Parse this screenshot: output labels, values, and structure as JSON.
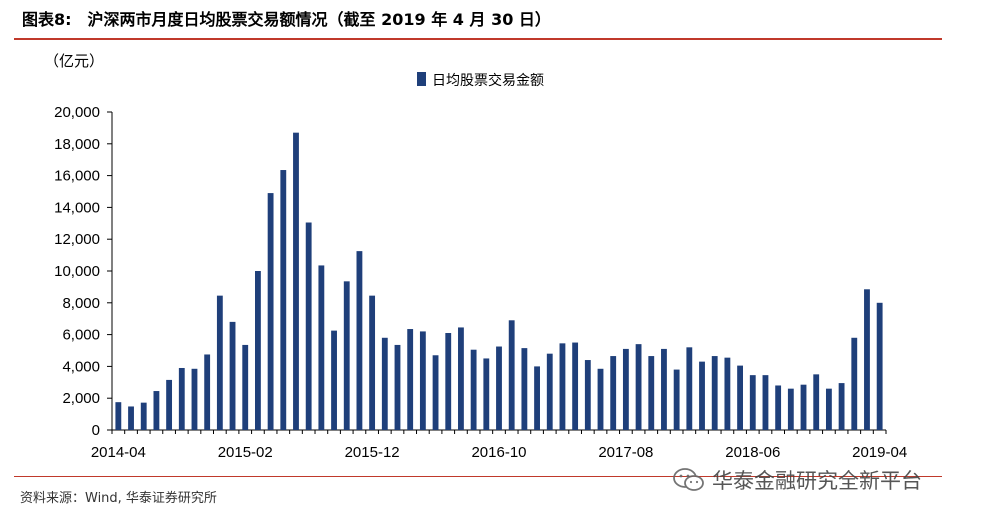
{
  "figure": {
    "label": "图表8:",
    "title": "沪深两市月度日均股票交易额情况（截至 2019 年 4 月 30 日）",
    "unit": "（亿元）",
    "source": "资料来源：Wind, 华泰证券研究所",
    "watermark": "华泰金融研究全新平台"
  },
  "colors": {
    "bar": "#1f3f7a",
    "rule": "#c0392b"
  },
  "chart_data": {
    "type": "bar",
    "title": "",
    "xlabel": "",
    "ylabel": "（亿元）",
    "ylim": [
      0,
      20000
    ],
    "yticks": [
      0,
      2000,
      4000,
      6000,
      8000,
      10000,
      12000,
      14000,
      16000,
      18000,
      20000
    ],
    "ytick_labels": [
      "0",
      "2,000",
      "4,000",
      "6,000",
      "8,000",
      "10,000",
      "12,000",
      "14,000",
      "16,000",
      "18,000",
      "20,000"
    ],
    "xtick_labels": [
      "2014-04",
      "2015-02",
      "2015-12",
      "2016-10",
      "2017-08",
      "2018-06",
      "2019-04"
    ],
    "legend": {
      "position": "top-center",
      "entries": [
        "日均股票交易金额"
      ]
    },
    "grid": false,
    "categories": [
      "2014-04",
      "2014-05",
      "2014-06",
      "2014-07",
      "2014-08",
      "2014-09",
      "2014-10",
      "2014-11",
      "2014-12",
      "2015-01",
      "2015-02",
      "2015-03",
      "2015-04",
      "2015-05",
      "2015-06",
      "2015-07",
      "2015-08",
      "2015-09",
      "2015-10",
      "2015-11",
      "2015-12",
      "2016-01",
      "2016-02",
      "2016-03",
      "2016-04",
      "2016-05",
      "2016-06",
      "2016-07",
      "2016-08",
      "2016-09",
      "2016-10",
      "2016-11",
      "2016-12",
      "2017-01",
      "2017-02",
      "2017-03",
      "2017-04",
      "2017-05",
      "2017-06",
      "2017-07",
      "2017-08",
      "2017-09",
      "2017-10",
      "2017-11",
      "2017-12",
      "2018-01",
      "2018-02",
      "2018-03",
      "2018-04",
      "2018-05",
      "2018-06",
      "2018-07",
      "2018-08",
      "2018-09",
      "2018-10",
      "2018-11",
      "2018-12",
      "2019-01",
      "2019-02",
      "2019-03",
      "2019-04"
    ],
    "series": [
      {
        "name": "日均股票交易金额",
        "values": [
          1750,
          1480,
          1720,
          2450,
          3150,
          3900,
          3850,
          4750,
          8450,
          6800,
          5350,
          10000,
          14900,
          16350,
          18700,
          13050,
          10350,
          6250,
          9350,
          11250,
          8450,
          5800,
          5350,
          6350,
          6200,
          4700,
          6100,
          6450,
          5050,
          4500,
          5250,
          6900,
          5150,
          4000,
          4800,
          5450,
          5500,
          4400,
          3850,
          4650,
          5100,
          5400,
          4650,
          5100,
          3800,
          5200,
          4300,
          4650,
          4550,
          4050,
          3450,
          3450,
          2800,
          2600,
          2850,
          3500,
          2600,
          2950,
          5800,
          8850,
          8000
        ]
      }
    ]
  }
}
